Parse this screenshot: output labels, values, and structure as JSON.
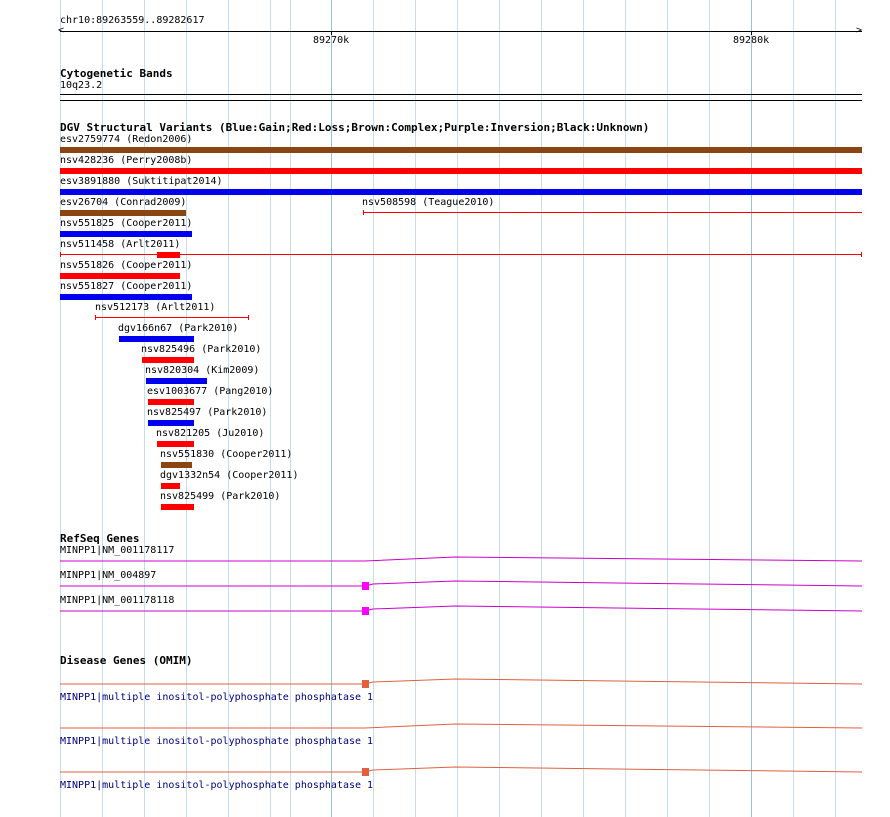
{
  "ruler": {
    "region": "chr10:89263559..89282617",
    "tick_89270k": "89270k",
    "tick_89280k": "89280k"
  },
  "cytoband": {
    "title": "Cytogenetic Bands",
    "band": "10q23.2"
  },
  "dgv": {
    "title": "DGV Structural Variants (Blue:Gain;Red:Loss;Brown:Complex;Purple:Inversion;Black:Unknown)",
    "colors": {
      "gain": "#0000ee",
      "loss": "#ff0000",
      "complex": "#8b4513",
      "inversion": "#800080",
      "unknown": "#000000"
    },
    "variants": [
      {
        "label": "esv2759774 (Redon2006)",
        "type": "complex"
      },
      {
        "label": "nsv428236 (Perry2008b)",
        "type": "loss"
      },
      {
        "label": "esv3891880 (Suktitipat2014)",
        "type": "gain"
      },
      {
        "label": "esv26704 (Conrad2009)",
        "type": "complex"
      },
      {
        "label": "nsv508598 (Teague2010)",
        "type": "loss"
      },
      {
        "label": "nsv551825 (Cooper2011)",
        "type": "gain"
      },
      {
        "label": "nsv511458 (Arlt2011)",
        "type": "loss"
      },
      {
        "label": "nsv551826 (Cooper2011)",
        "type": "loss"
      },
      {
        "label": "nsv551827 (Cooper2011)",
        "type": "gain"
      },
      {
        "label": "nsv512173 (Arlt2011)",
        "type": "loss"
      },
      {
        "label": "dgv166n67 (Park2010)",
        "type": "gain"
      },
      {
        "label": "nsv825496 (Park2010)",
        "type": "loss"
      },
      {
        "label": "nsv820304 (Kim2009)",
        "type": "gain"
      },
      {
        "label": "esv1003677 (Pang2010)",
        "type": "loss"
      },
      {
        "label": "nsv825497 (Park2010)",
        "type": "gain"
      },
      {
        "label": "nsv821205 (Ju2010)",
        "type": "loss"
      },
      {
        "label": "nsv551830 (Cooper2011)",
        "type": "complex"
      },
      {
        "label": "dgv1332n54 (Cooper2011)",
        "type": "loss"
      },
      {
        "label": "nsv825499 (Park2010)",
        "type": "loss"
      }
    ]
  },
  "refseq": {
    "title": "RefSeq Genes",
    "color": "#cc00cc",
    "exon_color": "#ff00ff",
    "genes": [
      {
        "label": "MINPP1|NM_001178117"
      },
      {
        "label": "MINPP1|NM_004897"
      },
      {
        "label": "MINPP1|NM_001178118"
      }
    ]
  },
  "omim": {
    "title": "Disease Genes (OMIM)",
    "color": "#e06040",
    "genes": [
      {
        "label": "MINPP1|multiple inositol-polyphosphate phosphatase 1"
      },
      {
        "label": "MINPP1|multiple inositol-polyphosphate phosphatase 1"
      },
      {
        "label": "MINPP1|multiple inositol-polyphosphate phosphatase 1"
      }
    ]
  },
  "grid": {
    "major_color": "#99c0e0",
    "minor_color": "#c6dcf0"
  }
}
